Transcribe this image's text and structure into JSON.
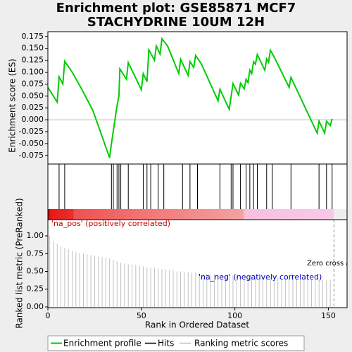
{
  "chart_data": [
    {
      "type": "line",
      "title": [
        "Enrichment plot: GSE85871 MCF7",
        "STACHYDRINE 10UM 12H"
      ],
      "ylabel": "Enrichment score (ES)",
      "xlim": [
        0,
        160
      ],
      "ylim": [
        -0.093,
        0.185
      ],
      "yticks": [
        0.175,
        {
          "value": 0.15,
          "label": "0.150"
        },
        0.125,
        {
          "value": 0.1,
          "label": "0.100"
        },
        0.075,
        {
          "value": 0.05,
          "label": "0.050"
        },
        0.025,
        {
          "value": 0,
          "label": "0.000"
        },
        -0.025,
        {
          "value": -0.05,
          "label": "-0.050"
        },
        -0.075
      ],
      "series": [
        {
          "name": "Enrichment profile",
          "color": "#00cc00",
          "x": [
            0,
            5,
            6,
            8,
            9,
            13,
            18,
            24,
            29,
            33,
            34,
            37,
            38,
            38.5,
            42,
            43,
            50,
            51,
            53,
            54,
            57,
            58,
            60,
            61,
            64,
            70,
            71,
            75,
            76,
            78,
            79,
            82,
            91,
            92,
            97,
            99,
            102,
            103,
            105,
            106,
            107,
            108,
            109,
            110,
            111,
            112,
            116,
            117,
            118,
            119,
            121,
            129,
            130,
            144,
            145,
            148,
            149,
            151,
            152
          ],
          "values": [
            0.068,
            0.037,
            0.09,
            0.075,
            0.123,
            0.1,
            0.065,
            0.02,
            -0.035,
            -0.08,
            -0.05,
            0.03,
            0.05,
            0.107,
            0.085,
            0.12,
            0.063,
            0.097,
            0.08,
            0.147,
            0.125,
            0.155,
            0.138,
            0.17,
            0.155,
            0.097,
            0.127,
            0.093,
            0.122,
            0.11,
            0.135,
            0.118,
            0.04,
            0.064,
            0.022,
            0.076,
            0.052,
            0.077,
            0.065,
            0.085,
            0.078,
            0.104,
            0.097,
            0.122,
            0.117,
            0.137,
            0.104,
            0.128,
            0.121,
            0.146,
            0.132,
            0.068,
            0.089,
            -0.028,
            -0.003,
            -0.028,
            -0.003,
            -0.012,
            0.002
          ]
        }
      ]
    },
    {
      "type": "hits",
      "xlim": [
        0,
        160
      ],
      "series": [
        {
          "name": "Hits",
          "color": "#000000",
          "x": [
            6,
            9,
            34,
            35,
            37,
            38,
            39,
            43,
            51,
            53,
            55,
            59,
            62,
            72,
            76,
            80,
            92,
            98,
            99,
            103,
            106,
            108,
            110,
            112,
            117,
            120,
            130,
            145,
            149,
            152
          ]
        }
      ]
    },
    {
      "type": "bar",
      "xlabel": "Rank in Ordered Dataset",
      "ylabel": "Ranked list metric (PreRanked)",
      "xlim": [
        0,
        160
      ],
      "xticks": [
        0,
        50,
        100,
        150
      ],
      "ylim": [
        -0.01,
        1.228
      ],
      "yticks": [
        {
          "value": 0,
          "label": "0.00"
        },
        0.25,
        {
          "value": 0.5,
          "label": "0.50"
        },
        0.75,
        {
          "value": 1,
          "label": "1.00"
        }
      ],
      "pos_label": "'na_pos' (positively correlated)",
      "neg_label": "'na_neg' (negatively correlated)",
      "zero_cross_label": "Zero cross at",
      "zero_cross": 153,
      "series": [
        {
          "name": "Ranking metric scores",
          "color": "#c0c0c0",
          "x": [
            1,
            3,
            5,
            7,
            9,
            11,
            13,
            15,
            17,
            19,
            21,
            23,
            25,
            27,
            29,
            31,
            33,
            35,
            37,
            39,
            41,
            43,
            45,
            47,
            49,
            51,
            53,
            55,
            57,
            59,
            61,
            63,
            65,
            67,
            69,
            71,
            73,
            75,
            77,
            79,
            81,
            83,
            85,
            87,
            89,
            91,
            93,
            95,
            97,
            99,
            101,
            103,
            105,
            107,
            109,
            111,
            113,
            115,
            117,
            119,
            121,
            123,
            125,
            127,
            129,
            131,
            133,
            135,
            137,
            139,
            141,
            143,
            145,
            147,
            149,
            151
          ],
          "values": [
            1.0,
            0.93,
            0.89,
            0.85,
            0.83,
            0.81,
            0.79,
            0.77,
            0.76,
            0.75,
            0.74,
            0.73,
            0.72,
            0.71,
            0.7,
            0.69,
            0.68,
            0.66,
            0.64,
            0.62,
            0.61,
            0.6,
            0.6,
            0.59,
            0.58,
            0.57,
            0.56,
            0.55,
            0.55,
            0.54,
            0.53,
            0.53,
            0.52,
            0.51,
            0.5,
            0.5,
            0.49,
            0.49,
            0.48,
            0.48,
            0.47,
            0.47,
            0.46,
            0.46,
            0.46,
            0.45,
            0.45,
            0.45,
            0.44,
            0.44,
            0.44,
            0.44,
            0.43,
            0.43,
            0.43,
            0.42,
            0.42,
            0.42,
            0.42,
            0.41,
            0.41,
            0.41,
            0.4,
            0.4,
            0.4,
            0.4,
            0.4,
            0.39,
            0.39,
            0.39,
            0.39,
            0.38,
            0.38,
            0.38,
            0.38,
            0.38
          ]
        }
      ]
    }
  ]
}
